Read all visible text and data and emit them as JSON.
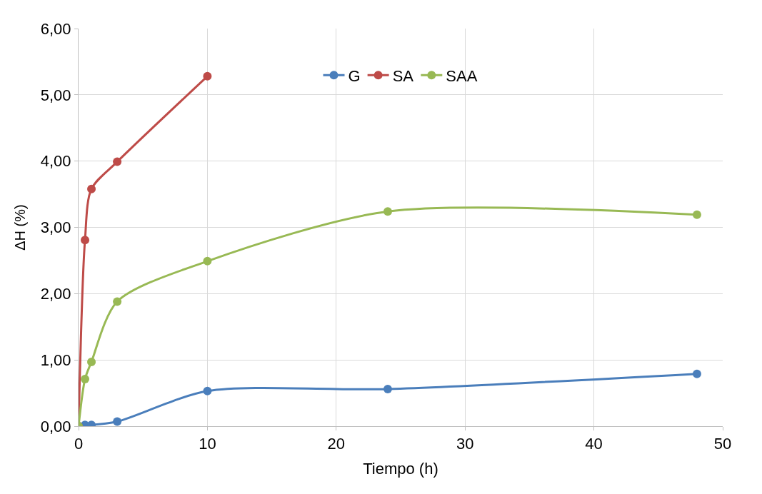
{
  "chart_data": {
    "type": "line",
    "xlabel": "Tiempo (h)",
    "ylabel": "ΔH (%)",
    "xlim": [
      0,
      50
    ],
    "xticks": [
      0,
      10,
      20,
      30,
      40,
      50
    ],
    "ylim": [
      0,
      6
    ],
    "yticks": [
      {
        "value": 0,
        "label": "0,00"
      },
      {
        "value": 1,
        "label": "1,00"
      },
      {
        "value": 2,
        "label": "2,00"
      },
      {
        "value": 3,
        "label": "3,00"
      },
      {
        "value": 4,
        "label": "4,00"
      },
      {
        "value": 5,
        "label": "5,00"
      },
      {
        "value": 6,
        "label": "6,00"
      }
    ],
    "grid": true,
    "legend": "top",
    "marker": "circle",
    "line_style": "solid",
    "series": [
      {
        "name": "G",
        "color": "#4a7ebb",
        "x": [
          0,
          0.5,
          1,
          3,
          10,
          24,
          48
        ],
        "values": [
          0,
          0.02,
          0.02,
          0.07,
          0.53,
          0.56,
          0.79
        ]
      },
      {
        "name": "SA",
        "color": "#be4b48",
        "x": [
          0,
          0.5,
          1,
          3,
          10
        ],
        "values": [
          0,
          2.81,
          3.58,
          3.99,
          5.28
        ]
      },
      {
        "name": "SAA",
        "color": "#98b954",
        "x": [
          0,
          0.5,
          1,
          3,
          10,
          24,
          48
        ],
        "values": [
          0,
          0.71,
          0.97,
          1.88,
          2.49,
          3.24,
          3.19
        ]
      }
    ]
  }
}
